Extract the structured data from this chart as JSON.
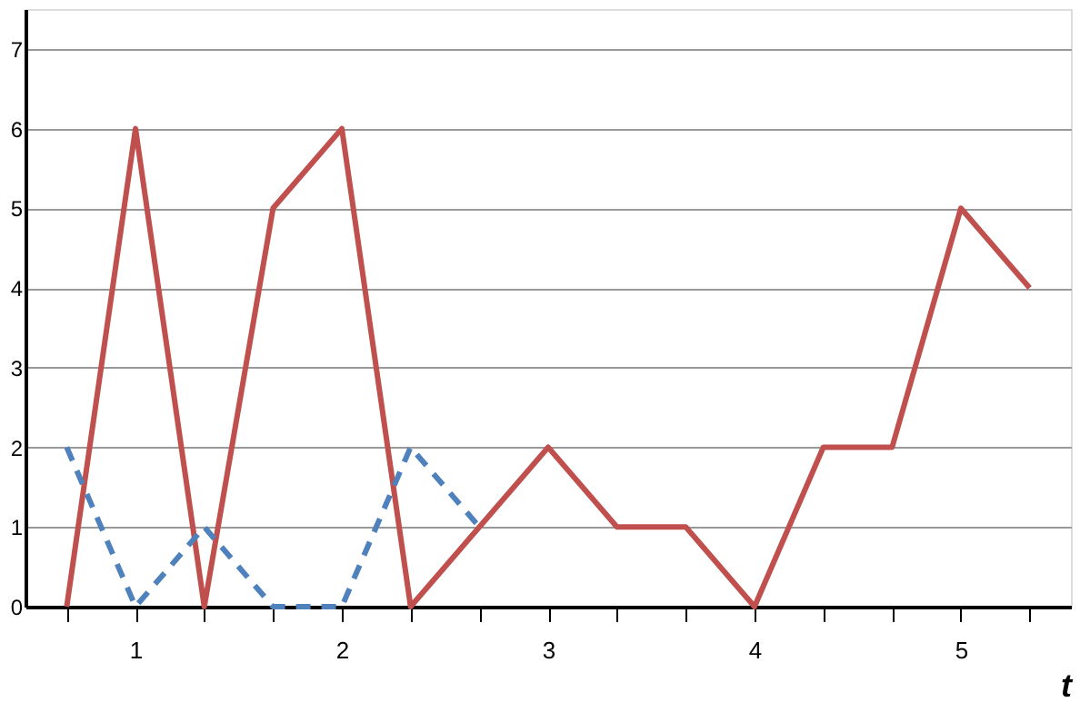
{
  "chart_data": {
    "type": "line",
    "xlabel": "t",
    "categories": [
      null,
      "1",
      null,
      null,
      "2",
      null,
      null,
      "3",
      null,
      null,
      "4",
      null,
      null,
      "5",
      null
    ],
    "series": [
      {
        "color": "#c0504d",
        "line_style": "solid",
        "values": [
          0,
          6,
          0,
          5,
          6,
          0,
          1,
          2,
          1,
          1,
          0,
          2,
          2,
          5,
          4
        ]
      },
      {
        "color": "#4f81bd",
        "line_style": "dashed",
        "values": [
          2,
          0,
          1,
          0,
          0,
          2,
          1,
          null,
          null,
          null,
          null,
          null,
          null,
          null,
          null
        ]
      }
    ],
    "ylim": [
      0,
      7.5
    ],
    "yticks": [
      0,
      1,
      2,
      3,
      4,
      5,
      6,
      7
    ],
    "grid": "y",
    "marker": "none"
  }
}
